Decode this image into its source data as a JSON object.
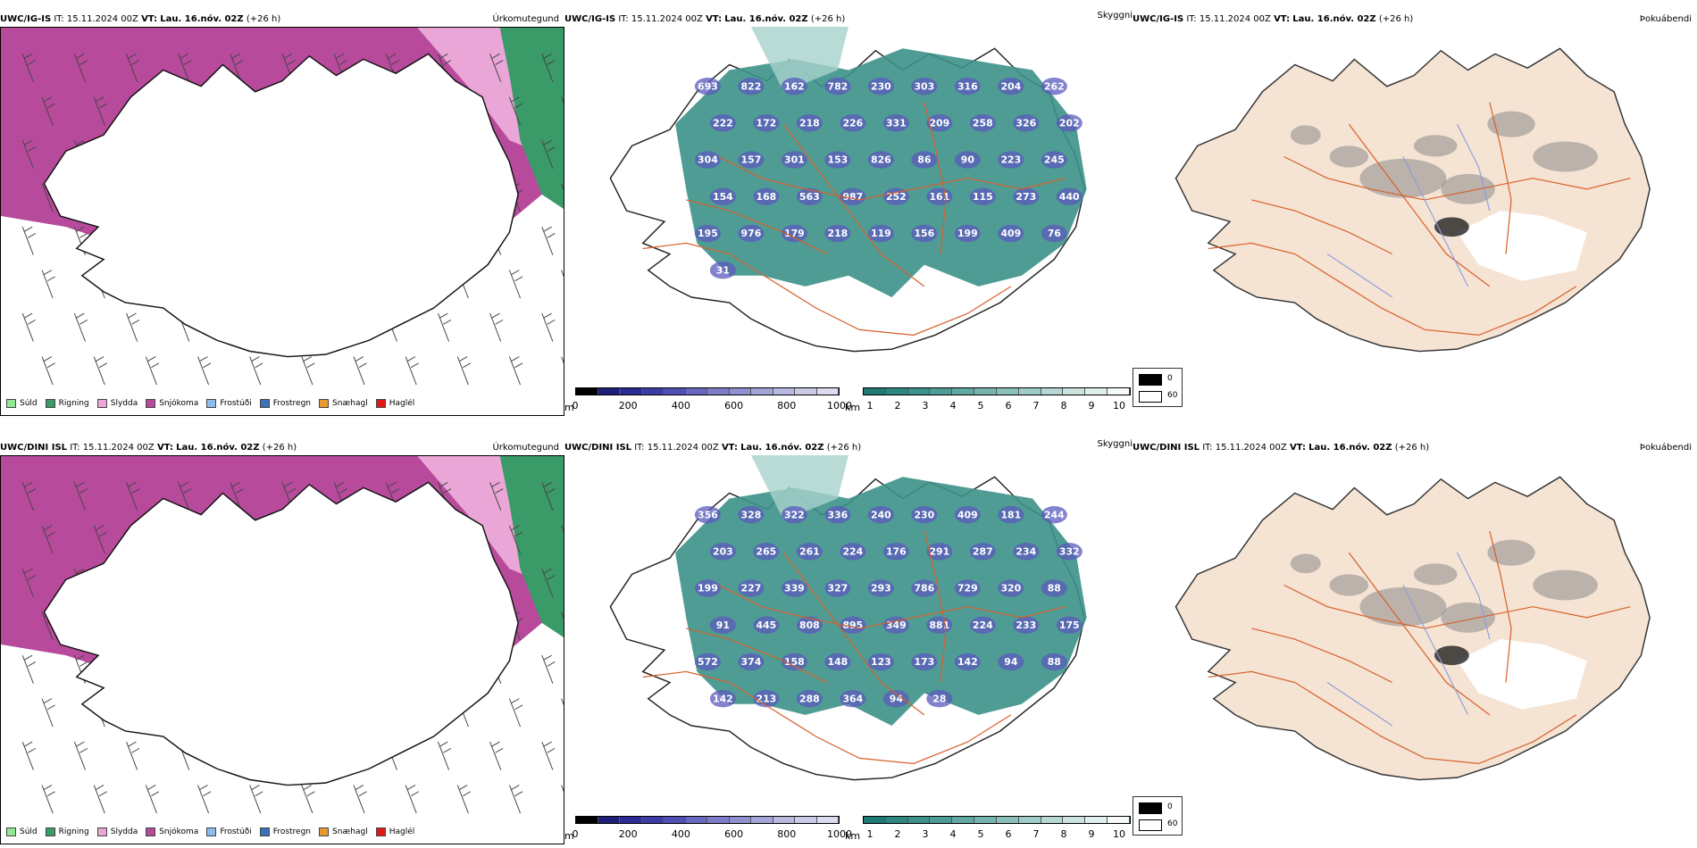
{
  "colors": {
    "snow": "#b84a9c",
    "sleet": "#eaa6d6",
    "rain": "#3a9a68",
    "drizzle": "#90e0a0",
    "teal": "#3c918a",
    "teal_light": "#a8d2cc",
    "land": "#f5e3d3",
    "roads": "#d8602a",
    "rivers": "#8a9ae0"
  },
  "rows": [
    {
      "model": "UWC/IG-IS",
      "it_label": "IT:",
      "it_value": "15.11.2024 00Z",
      "vt_label": "VT:",
      "vt_value": "Lau. 16.nóv. 02Z",
      "lead": "(+26 h)",
      "cloud_labels": [
        "693",
        "822",
        "162",
        "782",
        "230",
        "303",
        "316",
        "204",
        "262",
        "222",
        "172",
        "218",
        "226",
        "331",
        "209",
        "258",
        "326",
        "202",
        "304",
        "157",
        "301",
        "153",
        "826",
        "86",
        "90",
        "223",
        "245",
        "154",
        "168",
        "563",
        "987",
        "252",
        "161",
        "115",
        "273",
        "440",
        "195",
        "976",
        "179",
        "218",
        "119",
        "156",
        "199",
        "409",
        "76",
        "31"
      ]
    },
    {
      "model": "UWC/DINI ISL",
      "it_label": "IT:",
      "it_value": "15.11.2024 00Z",
      "vt_label": "VT:",
      "vt_value": "Lau. 16.nóv. 02Z",
      "lead": "(+26 h)",
      "cloud_labels": [
        "356",
        "328",
        "322",
        "336",
        "240",
        "230",
        "409",
        "181",
        "244",
        "203",
        "265",
        "261",
        "224",
        "176",
        "291",
        "287",
        "234",
        "332",
        "199",
        "227",
        "339",
        "327",
        "293",
        "786",
        "729",
        "320",
        "88",
        "91",
        "445",
        "808",
        "895",
        "349",
        "881",
        "224",
        "233",
        "175",
        "572",
        "374",
        "158",
        "148",
        "123",
        "173",
        "142",
        "94",
        "88",
        "142",
        "213",
        "288",
        "364",
        "94",
        "28"
      ]
    }
  ],
  "panels": {
    "precip": {
      "title": "Úrkomutegund",
      "legend": [
        {
          "label": "Súld",
          "color": "#90e890"
        },
        {
          "label": "Rigning",
          "color": "#3a9a68"
        },
        {
          "label": "Slydda",
          "color": "#eaa6d6"
        },
        {
          "label": "Snjókoma",
          "color": "#b84a9c"
        },
        {
          "label": "Frostúði",
          "color": "#8cbcec"
        },
        {
          "label": "Frostregn",
          "color": "#3a72b8"
        },
        {
          "label": "Snæhagl",
          "color": "#e89a30"
        },
        {
          "label": "Haglél",
          "color": "#e01818"
        }
      ]
    },
    "cloud": {
      "title": "Skyggni",
      "base_unit": "m",
      "base_ticks": [
        "0",
        "200",
        "400",
        "600",
        "800",
        "1000"
      ],
      "base_colors": [
        "#000000",
        "#1e1e78",
        "#2b2b96",
        "#3c3ca8",
        "#5050b4",
        "#6868c0",
        "#7c7cc8",
        "#9090d0",
        "#a4a4d8",
        "#b8b8e0",
        "#cbcbe8",
        "#dcdcf0"
      ],
      "vis_unit": "km",
      "vis_ticks": [
        "1",
        "2",
        "3",
        "4",
        "5",
        "6",
        "7",
        "8",
        "9",
        "10"
      ],
      "vis_colors": [
        "#1e7a72",
        "#2d8780",
        "#3c918a",
        "#4e9c96",
        "#62a8a2",
        "#76b4ae",
        "#8ac0ba",
        "#a0ccc8",
        "#b6d8d4",
        "#cce4e0",
        "#e0f0ee",
        "#f6fbfa"
      ]
    },
    "fog": {
      "title": "Þokuábendi",
      "legend": [
        {
          "label": "0",
          "color": "#000000"
        },
        {
          "label": "60",
          "color": "#ffffff"
        }
      ]
    }
  }
}
